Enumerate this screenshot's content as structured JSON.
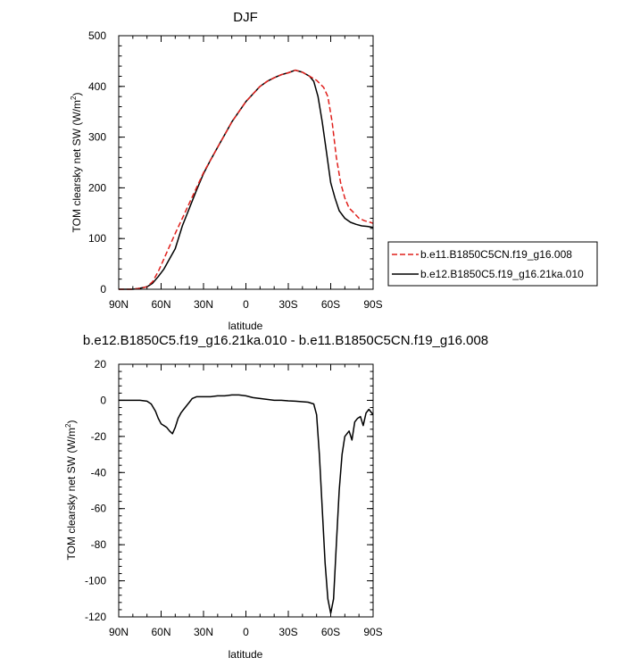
{
  "chart_data": [
    {
      "type": "line",
      "title": "DJF",
      "xlabel": "latitude",
      "ylabel": "TOM clearsky net SW (W/m²)",
      "ylabel_main": "TOM clearsky net SW (W/m",
      "ylabel_sup": "2",
      "ylabel_end": ")",
      "xlim": [
        90,
        -90
      ],
      "ylim": [
        0,
        500
      ],
      "x_ticks": [
        90,
        60,
        30,
        0,
        -30,
        -60,
        -90
      ],
      "x_tick_labels": [
        "90N",
        "60N",
        "30N",
        "0",
        "30S",
        "60S",
        "90S"
      ],
      "y_ticks": [
        0,
        100,
        200,
        300,
        400,
        500
      ],
      "y_tick_labels": [
        "0",
        "100",
        "200",
        "300",
        "400",
        "500"
      ],
      "legend_position": "right",
      "series": [
        {
          "name": "b.e11.B1850C5CN.f19_g16.008",
          "color": "#e0201c",
          "dash": "dashed",
          "points": [
            [
              90,
              0
            ],
            [
              80,
              0
            ],
            [
              75,
              2
            ],
            [
              70,
              5
            ],
            [
              66,
              15
            ],
            [
              62,
              35
            ],
            [
              58,
              60
            ],
            [
              54,
              85
            ],
            [
              50,
              110
            ],
            [
              45,
              140
            ],
            [
              40,
              170
            ],
            [
              35,
              200
            ],
            [
              30,
              230
            ],
            [
              25,
              255
            ],
            [
              20,
              280
            ],
            [
              15,
              305
            ],
            [
              10,
              330
            ],
            [
              5,
              350
            ],
            [
              0,
              370
            ],
            [
              -5,
              385
            ],
            [
              -10,
              400
            ],
            [
              -15,
              410
            ],
            [
              -20,
              417
            ],
            [
              -25,
              423
            ],
            [
              -30,
              427
            ],
            [
              -35,
              432
            ],
            [
              -40,
              428
            ],
            [
              -45,
              420
            ],
            [
              -50,
              412
            ],
            [
              -55,
              398
            ],
            [
              -58,
              380
            ],
            [
              -61,
              330
            ],
            [
              -64,
              260
            ],
            [
              -67,
              210
            ],
            [
              -70,
              180
            ],
            [
              -73,
              160
            ],
            [
              -76,
              152
            ],
            [
              -80,
              140
            ],
            [
              -84,
              135
            ],
            [
              -88,
              132
            ],
            [
              -90,
              130
            ]
          ]
        },
        {
          "name": "b.e12.B1850C5.f19_g16.21ka.010",
          "color": "#000000",
          "dash": "solid",
          "points": [
            [
              90,
              0
            ],
            [
              80,
              0
            ],
            [
              75,
              2
            ],
            [
              70,
              5
            ],
            [
              66,
              12
            ],
            [
              62,
              25
            ],
            [
              58,
              40
            ],
            [
              54,
              60
            ],
            [
              50,
              80
            ],
            [
              45,
              125
            ],
            [
              40,
              160
            ],
            [
              35,
              195
            ],
            [
              30,
              228
            ],
            [
              25,
              255
            ],
            [
              20,
              280
            ],
            [
              15,
              305
            ],
            [
              10,
              330
            ],
            [
              5,
              350
            ],
            [
              0,
              370
            ],
            [
              -5,
              385
            ],
            [
              -10,
              400
            ],
            [
              -15,
              410
            ],
            [
              -20,
              417
            ],
            [
              -25,
              423
            ],
            [
              -30,
              427
            ],
            [
              -35,
              432
            ],
            [
              -40,
              428
            ],
            [
              -45,
              420
            ],
            [
              -48,
              410
            ],
            [
              -51,
              380
            ],
            [
              -54,
              330
            ],
            [
              -57,
              270
            ],
            [
              -60,
              210
            ],
            [
              -63,
              180
            ],
            [
              -66,
              155
            ],
            [
              -70,
              140
            ],
            [
              -74,
              132
            ],
            [
              -78,
              128
            ],
            [
              -82,
              125
            ],
            [
              -86,
              124
            ],
            [
              -90,
              122
            ]
          ]
        }
      ]
    },
    {
      "type": "line",
      "title": "b.e12.B1850C5.f19_g16.21ka.010 - b.e11.B1850C5CN.f19_g16.008",
      "xlabel": "latitude",
      "ylabel": "TOM clearsky net SW (W/m²)",
      "ylabel_main": "TOM clearsky net SW (W/m",
      "ylabel_sup": "2",
      "ylabel_end": ")",
      "xlim": [
        90,
        -90
      ],
      "ylim": [
        -120,
        20
      ],
      "x_ticks": [
        90,
        60,
        30,
        0,
        -30,
        -60,
        -90
      ],
      "x_tick_labels": [
        "90N",
        "60N",
        "30N",
        "0",
        "30S",
        "60S",
        "90S"
      ],
      "y_ticks": [
        -120,
        -100,
        -80,
        -60,
        -40,
        -20,
        0,
        20
      ],
      "y_tick_labels": [
        "-120",
        "-100",
        "-80",
        "-60",
        "-40",
        "-20",
        "0",
        "20"
      ],
      "series": [
        {
          "color": "#000000",
          "dash": "solid",
          "points": [
            [
              90,
              0
            ],
            [
              75,
              0
            ],
            [
              70,
              -0.5
            ],
            [
              67,
              -2
            ],
            [
              64,
              -6
            ],
            [
              62,
              -10
            ],
            [
              60,
              -13
            ],
            [
              58,
              -14
            ],
            [
              56,
              -15
            ],
            [
              54,
              -17
            ],
            [
              52,
              -18.5
            ],
            [
              50,
              -15
            ],
            [
              48,
              -10
            ],
            [
              46,
              -7
            ],
            [
              44,
              -5
            ],
            [
              42,
              -3
            ],
            [
              40,
              -1
            ],
            [
              38,
              1
            ],
            [
              35,
              2
            ],
            [
              30,
              2
            ],
            [
              25,
              2
            ],
            [
              20,
              2.5
            ],
            [
              15,
              2.5
            ],
            [
              10,
              3
            ],
            [
              5,
              3
            ],
            [
              0,
              2.5
            ],
            [
              -5,
              1.5
            ],
            [
              -10,
              1
            ],
            [
              -15,
              0.5
            ],
            [
              -20,
              0
            ],
            [
              -25,
              0
            ],
            [
              -30,
              -0.3
            ],
            [
              -35,
              -0.5
            ],
            [
              -40,
              -0.8
            ],
            [
              -44,
              -1
            ],
            [
              -46,
              -1.5
            ],
            [
              -48,
              -2
            ],
            [
              -50,
              -8
            ],
            [
              -52,
              -30
            ],
            [
              -54,
              -60
            ],
            [
              -56,
              -90
            ],
            [
              -58,
              -110
            ],
            [
              -60,
              -118
            ],
            [
              -62,
              -110
            ],
            [
              -64,
              -80
            ],
            [
              -66,
              -50
            ],
            [
              -68,
              -30
            ],
            [
              -70,
              -20
            ],
            [
              -72,
              -18
            ],
            [
              -73,
              -17
            ],
            [
              -75,
              -22
            ],
            [
              -77,
              -12
            ],
            [
              -79,
              -10
            ],
            [
              -81,
              -9
            ],
            [
              -83,
              -14
            ],
            [
              -85,
              -7
            ],
            [
              -87,
              -5
            ],
            [
              -90,
              -8
            ]
          ]
        }
      ]
    }
  ]
}
